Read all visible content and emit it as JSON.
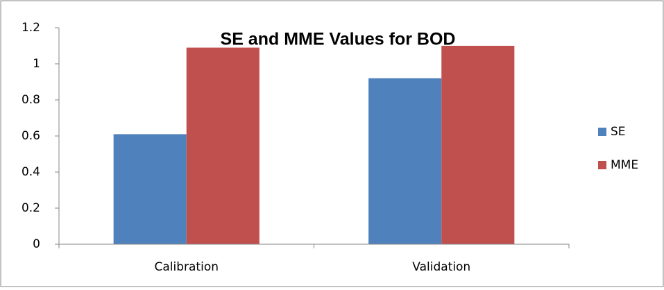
{
  "chart_data": {
    "type": "bar",
    "title": "SE and MME Values for BOD",
    "categories": [
      "Calibration",
      "Validation"
    ],
    "series": [
      {
        "name": "SE",
        "color": "#4f81bd",
        "values": [
          0.61,
          0.92
        ]
      },
      {
        "name": "MME",
        "color": "#c0504d",
        "values": [
          1.09,
          1.1
        ]
      }
    ],
    "ylim": [
      0,
      1.2
    ],
    "yticks": [
      0,
      0.2,
      0.4,
      0.6,
      0.8,
      1,
      1.2
    ],
    "grid": false,
    "legend": "right"
  }
}
